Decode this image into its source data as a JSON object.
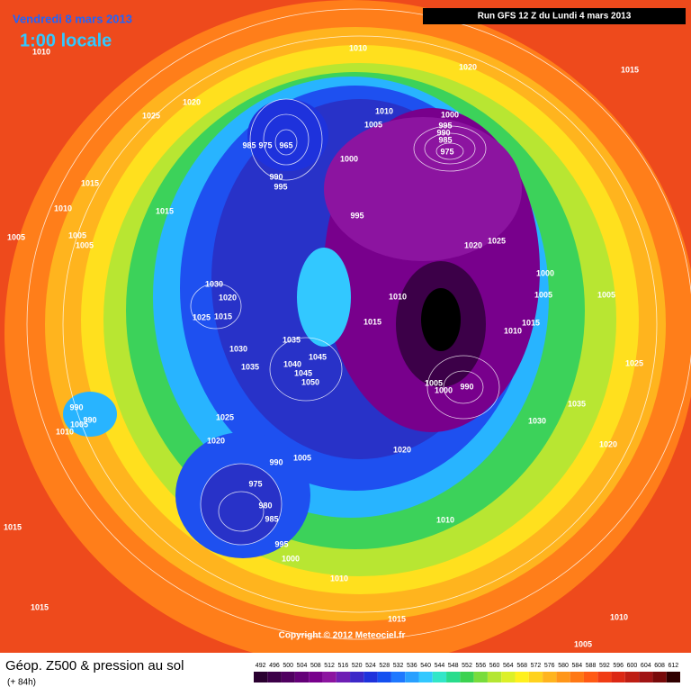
{
  "header": {
    "date": "Vendredi 8 mars 2013",
    "time": "1:00 locale",
    "run": "Run GFS 12 Z du Lundi 4 mars 2013"
  },
  "copyright": "Copyright © 2012 Meteociel.fr",
  "footer": {
    "title": "Géop. Z500 & pression au sol",
    "subtitle": "(+ 84h)"
  },
  "colorbar": {
    "values": [
      492,
      496,
      500,
      504,
      508,
      512,
      516,
      520,
      524,
      528,
      532,
      536,
      540,
      544,
      548,
      552,
      556,
      560,
      564,
      568,
      572,
      576,
      580,
      584,
      588,
      592,
      596,
      600,
      604,
      608,
      612
    ],
    "colors": [
      "#2a0030",
      "#3c0048",
      "#500060",
      "#640078",
      "#78008c",
      "#8c14a0",
      "#6e1eb4",
      "#3c28c8",
      "#1e32dc",
      "#1450f0",
      "#1e78ff",
      "#28a0ff",
      "#32c8ff",
      "#32e6c8",
      "#28dc8c",
      "#3cd250",
      "#78dc3c",
      "#b4e632",
      "#dcf028",
      "#fff01e",
      "#ffd21e",
      "#ffb41e",
      "#ff9619",
      "#ff7814",
      "#ff5a14",
      "#f03c14",
      "#dc2814",
      "#be1e14",
      "#a01414",
      "#780a0a",
      "#300000"
    ]
  },
  "isobar_labels": [
    "1010",
    "1010",
    "1020",
    "1015",
    "1025",
    "1020",
    "1010",
    "1005",
    "1000",
    "995",
    "990",
    "985",
    "975",
    "985",
    "975",
    "965",
    "1000",
    "990",
    "995",
    "1015",
    "1010",
    "1015",
    "995",
    "1005",
    "1005",
    "1005",
    "1020",
    "1025",
    "1000",
    "1005",
    "1005",
    "1030",
    "1020",
    "1025",
    "1015",
    "1010",
    "1015",
    "1015",
    "1010",
    "1030",
    "1035",
    "1045",
    "1040",
    "1035",
    "1045",
    "1050",
    "1025",
    "1005",
    "1000",
    "990",
    "1035",
    "1030",
    "990",
    "990",
    "1005",
    "1010",
    "1025",
    "1020",
    "1020",
    "1020",
    "990",
    "1005",
    "975",
    "980",
    "985",
    "1010",
    "995",
    "1000",
    "1010",
    "1015",
    "1015",
    "1010",
    "1015",
    "1005"
  ]
}
